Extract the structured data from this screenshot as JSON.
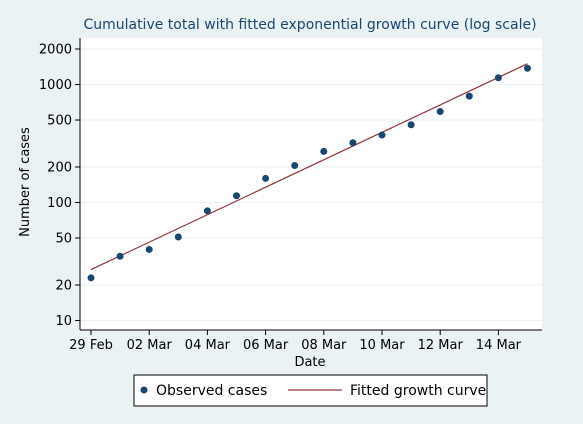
{
  "chart_data": {
    "type": "scatter",
    "title": "Cumulative total with fitted exponential growth curve (log scale)",
    "xlabel": "Date",
    "ylabel": "Number of cases",
    "y_scale": "log",
    "grid": true,
    "legend_position": "bottom",
    "x_ticks": [
      "29 Feb",
      "02 Mar",
      "04 Mar",
      "06 Mar",
      "08 Mar",
      "10 Mar",
      "12 Mar",
      "14 Mar"
    ],
    "y_ticks": [
      "10",
      "20",
      "50",
      "100",
      "200",
      "500",
      "1000",
      "2000"
    ],
    "series": [
      {
        "name": "Observed cases",
        "kind": "scatter",
        "color": "#1a476f",
        "x": [
          "29 Feb",
          "01 Mar",
          "02 Mar",
          "03 Mar",
          "04 Mar",
          "05 Mar",
          "06 Mar",
          "07 Mar",
          "08 Mar",
          "09 Mar",
          "10 Mar",
          "11 Mar",
          "12 Mar",
          "13 Mar",
          "14 Mar",
          "15 Mar"
        ],
        "y": [
          23,
          35,
          40,
          51,
          85,
          114,
          160,
          206,
          271,
          321,
          373,
          456,
          590,
          797,
          1140,
          1372
        ]
      },
      {
        "name": "Fitted growth curve",
        "kind": "line",
        "color": "#90353b",
        "x": [
          "29 Feb",
          "15 Mar"
        ],
        "y": [
          27,
          1500
        ]
      }
    ]
  }
}
